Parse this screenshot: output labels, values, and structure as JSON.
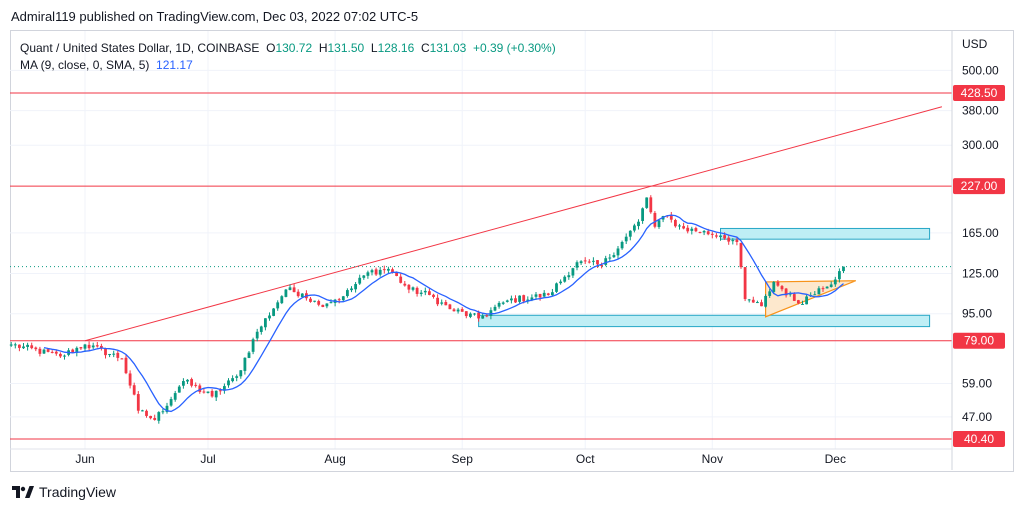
{
  "header": {
    "published": "Admiral119 published on TradingView.com, Dec 03, 2022 07:02 UTC-5"
  },
  "legend": {
    "symbol_line": "Quant / United States Dollar, 1D, COINBASE",
    "o_label": "O",
    "o_value": "130.72",
    "h_label": "H",
    "h_value": "131.50",
    "l_label": "L",
    "l_value": "128.16",
    "c_label": "C",
    "c_value": "131.03",
    "change": "+0.39 (+0.30%)",
    "ma_label": "MA (9, close, 0, SMA, 5)",
    "ma_value": "121.17"
  },
  "footer": {
    "brand": "TradingView"
  },
  "colors": {
    "up": "#089981",
    "down": "#f23645",
    "ma": "#2962ff",
    "level_line": "#f23645",
    "zone_fill": "#bfeef5",
    "zone_stroke": "#26a6c6",
    "triangle_fill": "#fde2c0",
    "triangle_stroke": "#f7931a"
  },
  "chart_data": {
    "type": "candlestick",
    "symbol": "Quant / United States Dollar",
    "interval": "1D",
    "exchange": "COINBASE",
    "y_scale": "log",
    "y_unit": "USD",
    "y_ticks": [
      500.0,
      380.0,
      300.0,
      165.0,
      125.0,
      95.0,
      59.0,
      47.0
    ],
    "x_ticks": [
      {
        "date": "2022-06-01",
        "label": "Jun"
      },
      {
        "date": "2022-07-01",
        "label": "Jul"
      },
      {
        "date": "2022-08-01",
        "label": "Aug"
      },
      {
        "date": "2022-09-01",
        "label": "Sep"
      },
      {
        "date": "2022-10-01",
        "label": "Oct"
      },
      {
        "date": "2022-11-01",
        "label": "Nov"
      },
      {
        "date": "2022-12-01",
        "label": "Dec"
      }
    ],
    "horizontal_levels": [
      428.5,
      227.0,
      79.0,
      40.4
    ],
    "price_labels": [
      "428.50",
      "227.00",
      "79.00",
      "40.40"
    ],
    "last_price": 131.03,
    "trendline": {
      "start": {
        "date": "2022-06-01",
        "price": 79.0
      },
      "end": {
        "date": "2022-12-27",
        "price": 390.0
      }
    },
    "zones": [
      {
        "from": "2022-11-03",
        "to": "2022-12-24",
        "top": 170,
        "bottom": 158
      },
      {
        "from": "2022-09-05",
        "to": "2022-12-24",
        "top": 94,
        "bottom": 87
      }
    ],
    "triangle": [
      {
        "date": "2022-11-14",
        "price": 93
      },
      {
        "date": "2022-11-14",
        "price": 118
      },
      {
        "date": "2022-12-06",
        "price": 119
      }
    ],
    "ma_period": 9,
    "ma_last": 121.17,
    "anchors": [
      {
        "date": "2022-05-14",
        "close": 77
      },
      {
        "date": "2022-05-26",
        "close": 71
      },
      {
        "date": "2022-06-01",
        "close": 77
      },
      {
        "date": "2022-06-10",
        "close": 70
      },
      {
        "date": "2022-06-14",
        "close": 49
      },
      {
        "date": "2022-06-18",
        "close": 46
      },
      {
        "date": "2022-06-25",
        "close": 60
      },
      {
        "date": "2022-07-02",
        "close": 54
      },
      {
        "date": "2022-07-08",
        "close": 62
      },
      {
        "date": "2022-07-13",
        "close": 84
      },
      {
        "date": "2022-07-20",
        "close": 112
      },
      {
        "date": "2022-07-24",
        "close": 109
      },
      {
        "date": "2022-07-28",
        "close": 101
      },
      {
        "date": "2022-08-03",
        "close": 107
      },
      {
        "date": "2022-08-09",
        "close": 126
      },
      {
        "date": "2022-08-14",
        "close": 129
      },
      {
        "date": "2022-08-19",
        "close": 112
      },
      {
        "date": "2022-08-24",
        "close": 108
      },
      {
        "date": "2022-08-29",
        "close": 98
      },
      {
        "date": "2022-09-05",
        "close": 92
      },
      {
        "date": "2022-09-12",
        "close": 104
      },
      {
        "date": "2022-09-22",
        "close": 108
      },
      {
        "date": "2022-09-29",
        "close": 135
      },
      {
        "date": "2022-10-05",
        "close": 132
      },
      {
        "date": "2022-10-10",
        "close": 155
      },
      {
        "date": "2022-10-14",
        "close": 178
      },
      {
        "date": "2022-10-16",
        "close": 210
      },
      {
        "date": "2022-10-18",
        "close": 172
      },
      {
        "date": "2022-10-20",
        "close": 185
      },
      {
        "date": "2022-10-25",
        "close": 170
      },
      {
        "date": "2022-11-03",
        "close": 162
      },
      {
        "date": "2022-11-07",
        "close": 155
      },
      {
        "date": "2022-11-09",
        "close": 105
      },
      {
        "date": "2022-11-13",
        "close": 100
      },
      {
        "date": "2022-11-16",
        "close": 118
      },
      {
        "date": "2022-11-22",
        "close": 102
      },
      {
        "date": "2022-11-27",
        "close": 113
      },
      {
        "date": "2022-12-01",
        "close": 120
      },
      {
        "date": "2022-12-03",
        "close": 131
      }
    ]
  }
}
